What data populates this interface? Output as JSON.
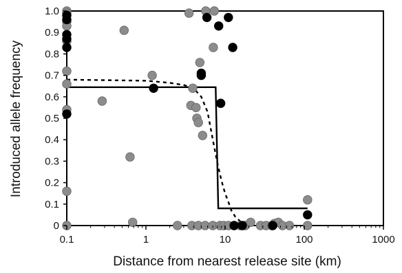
{
  "chart_data": {
    "type": "scatter",
    "xlabel": "Distance from nearest release site (km)",
    "ylabel": "Introduced allele frequency",
    "x_scale": "log",
    "xlim": [
      0.1,
      1000
    ],
    "ylim": [
      0,
      1.0
    ],
    "x_ticks": [
      {
        "value": 0.1,
        "label": "0.1"
      },
      {
        "value": 1,
        "label": "1"
      },
      {
        "value": 10,
        "label": "10"
      },
      {
        "value": 100,
        "label": "100"
      },
      {
        "value": 1000,
        "label": "1000"
      }
    ],
    "y_ticks": [
      {
        "value": 0,
        "label": "0"
      },
      {
        "value": 0.1,
        "label": "0.1"
      },
      {
        "value": 0.2,
        "label": "0.2"
      },
      {
        "value": 0.3,
        "label": "0.3"
      },
      {
        "value": 0.4,
        "label": "0.4"
      },
      {
        "value": 0.5,
        "label": "0.5"
      },
      {
        "value": 0.6,
        "label": "0.6"
      },
      {
        "value": 0.7,
        "label": "0.7"
      },
      {
        "value": 0.8,
        "label": "0.8"
      },
      {
        "value": 0.9,
        "label": "0.9"
      },
      {
        "value": 1.0,
        "label": "1.0"
      }
    ],
    "grid": false,
    "legend": "none",
    "series": [
      {
        "marker": "gray-circle",
        "color": "#8c8c8c",
        "points": [
          [
            0.1,
            1.0
          ],
          [
            0.1,
            0.99
          ],
          [
            0.1,
            0.95
          ],
          [
            0.1,
            0.93
          ],
          [
            0.1,
            0.86
          ],
          [
            0.1,
            0.72
          ],
          [
            0.1,
            0.66
          ],
          [
            0.1,
            0.54
          ],
          [
            0.1,
            0.16
          ],
          [
            0.1,
            0.0
          ],
          [
            0.53,
            0.91
          ],
          [
            0.28,
            0.58
          ],
          [
            0.63,
            0.32
          ],
          [
            0.68,
            0.015
          ],
          [
            1.2,
            0.7
          ],
          [
            2.5,
            0.0
          ],
          [
            3.5,
            0.99
          ],
          [
            3.9,
            0.64
          ],
          [
            3.7,
            0.56
          ],
          [
            4.3,
            0.55
          ],
          [
            4.4,
            0.5
          ],
          [
            4.6,
            0.48
          ],
          [
            4.8,
            0.76
          ],
          [
            5.2,
            0.42
          ],
          [
            5.7,
            1.0
          ],
          [
            7.3,
            1.0
          ],
          [
            7.1,
            0.83
          ],
          [
            3.8,
            0.0
          ],
          [
            4.6,
            0.0
          ],
          [
            5.6,
            0.0
          ],
          [
            7.0,
            0.0
          ],
          [
            8.6,
            0.0
          ],
          [
            9.6,
            0.0
          ],
          [
            11.0,
            0.0
          ],
          [
            13.0,
            0.0
          ],
          [
            15.5,
            0.0
          ],
          [
            18.0,
            0.0
          ],
          [
            21.0,
            0.015
          ],
          [
            28.0,
            0.0
          ],
          [
            33.0,
            0.0
          ],
          [
            39.0,
            0.0
          ],
          [
            42.0,
            0.01
          ],
          [
            47.0,
            0.015
          ],
          [
            53.0,
            0.0
          ],
          [
            65.0,
            0.0
          ],
          [
            110.0,
            0.12
          ],
          [
            110.0,
            0.0
          ]
        ]
      },
      {
        "marker": "black-circle",
        "color": "#000000",
        "points": [
          [
            0.1,
            0.98
          ],
          [
            0.1,
            0.96
          ],
          [
            0.1,
            0.89
          ],
          [
            0.1,
            0.87
          ],
          [
            0.1,
            0.83
          ],
          [
            0.1,
            0.52
          ],
          [
            1.25,
            0.64
          ],
          [
            5.0,
            0.71
          ],
          [
            5.0,
            0.7
          ],
          [
            5.9,
            0.97
          ],
          [
            8.3,
            0.93
          ],
          [
            8.8,
            0.57
          ],
          [
            11.0,
            0.97
          ],
          [
            12.5,
            0.83
          ],
          [
            13.0,
            0.0
          ],
          [
            16.5,
            0.0
          ],
          [
            40.0,
            0.0
          ],
          [
            110.0,
            0.05
          ]
        ]
      }
    ],
    "fit_lines": [
      {
        "style": "solid",
        "points": [
          [
            0.1,
            0.645
          ],
          [
            7.6,
            0.645
          ],
          [
            8.2,
            0.08
          ],
          [
            110.0,
            0.08
          ]
        ]
      },
      {
        "style": "dashed",
        "points": [
          [
            0.1,
            0.68
          ],
          [
            1.0,
            0.675
          ],
          [
            2.0,
            0.665
          ],
          [
            3.0,
            0.655
          ],
          [
            4.0,
            0.64
          ],
          [
            5.0,
            0.6
          ],
          [
            6.0,
            0.53
          ],
          [
            7.0,
            0.4
          ],
          [
            8.0,
            0.29
          ],
          [
            9.0,
            0.21
          ],
          [
            10.0,
            0.15
          ],
          [
            11.0,
            0.11
          ],
          [
            12.0,
            0.07
          ],
          [
            13.5,
            0.04
          ],
          [
            15.5,
            0.02
          ],
          [
            18.0,
            0.0
          ],
          [
            22.0,
            0.0
          ]
        ]
      }
    ]
  }
}
